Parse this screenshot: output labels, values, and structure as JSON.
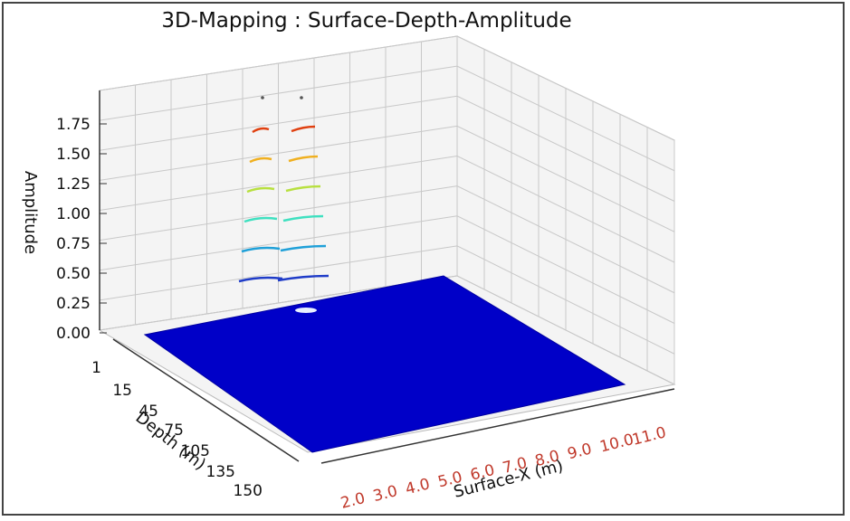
{
  "chart_data": {
    "type": "3d-surface-contour",
    "title": "3D-Mapping : Surface-Depth-Amplitude",
    "zlabel": "Amplitude",
    "ylabel": "Depth (m)",
    "xlabel": "Surface-X (m)",
    "z_ticks": [
      "0.00",
      "0.25",
      "0.50",
      "0.75",
      "1.00",
      "1.25",
      "1.50",
      "1.75"
    ],
    "depth_ticks": [
      "1",
      "15",
      "45",
      "75",
      "105",
      "135",
      "150"
    ],
    "x_ticks": [
      "2.0",
      "3.0",
      "4.0",
      "5.0",
      "6.0",
      "7.0",
      "8.0",
      "9.0",
      "10.0",
      "11.0"
    ],
    "zlim": [
      0,
      1.9
    ],
    "surface_color": "#0000c8",
    "contour_levels": [
      {
        "z": 0.5,
        "color": "#1f3cc8"
      },
      {
        "z": 0.75,
        "color": "#1fa0d8"
      },
      {
        "z": 1.0,
        "color": "#3fe0c0"
      },
      {
        "z": 1.25,
        "color": "#b8e040"
      },
      {
        "z": 1.5,
        "color": "#f0b020"
      },
      {
        "z": 1.75,
        "color": "#e04010"
      }
    ]
  }
}
